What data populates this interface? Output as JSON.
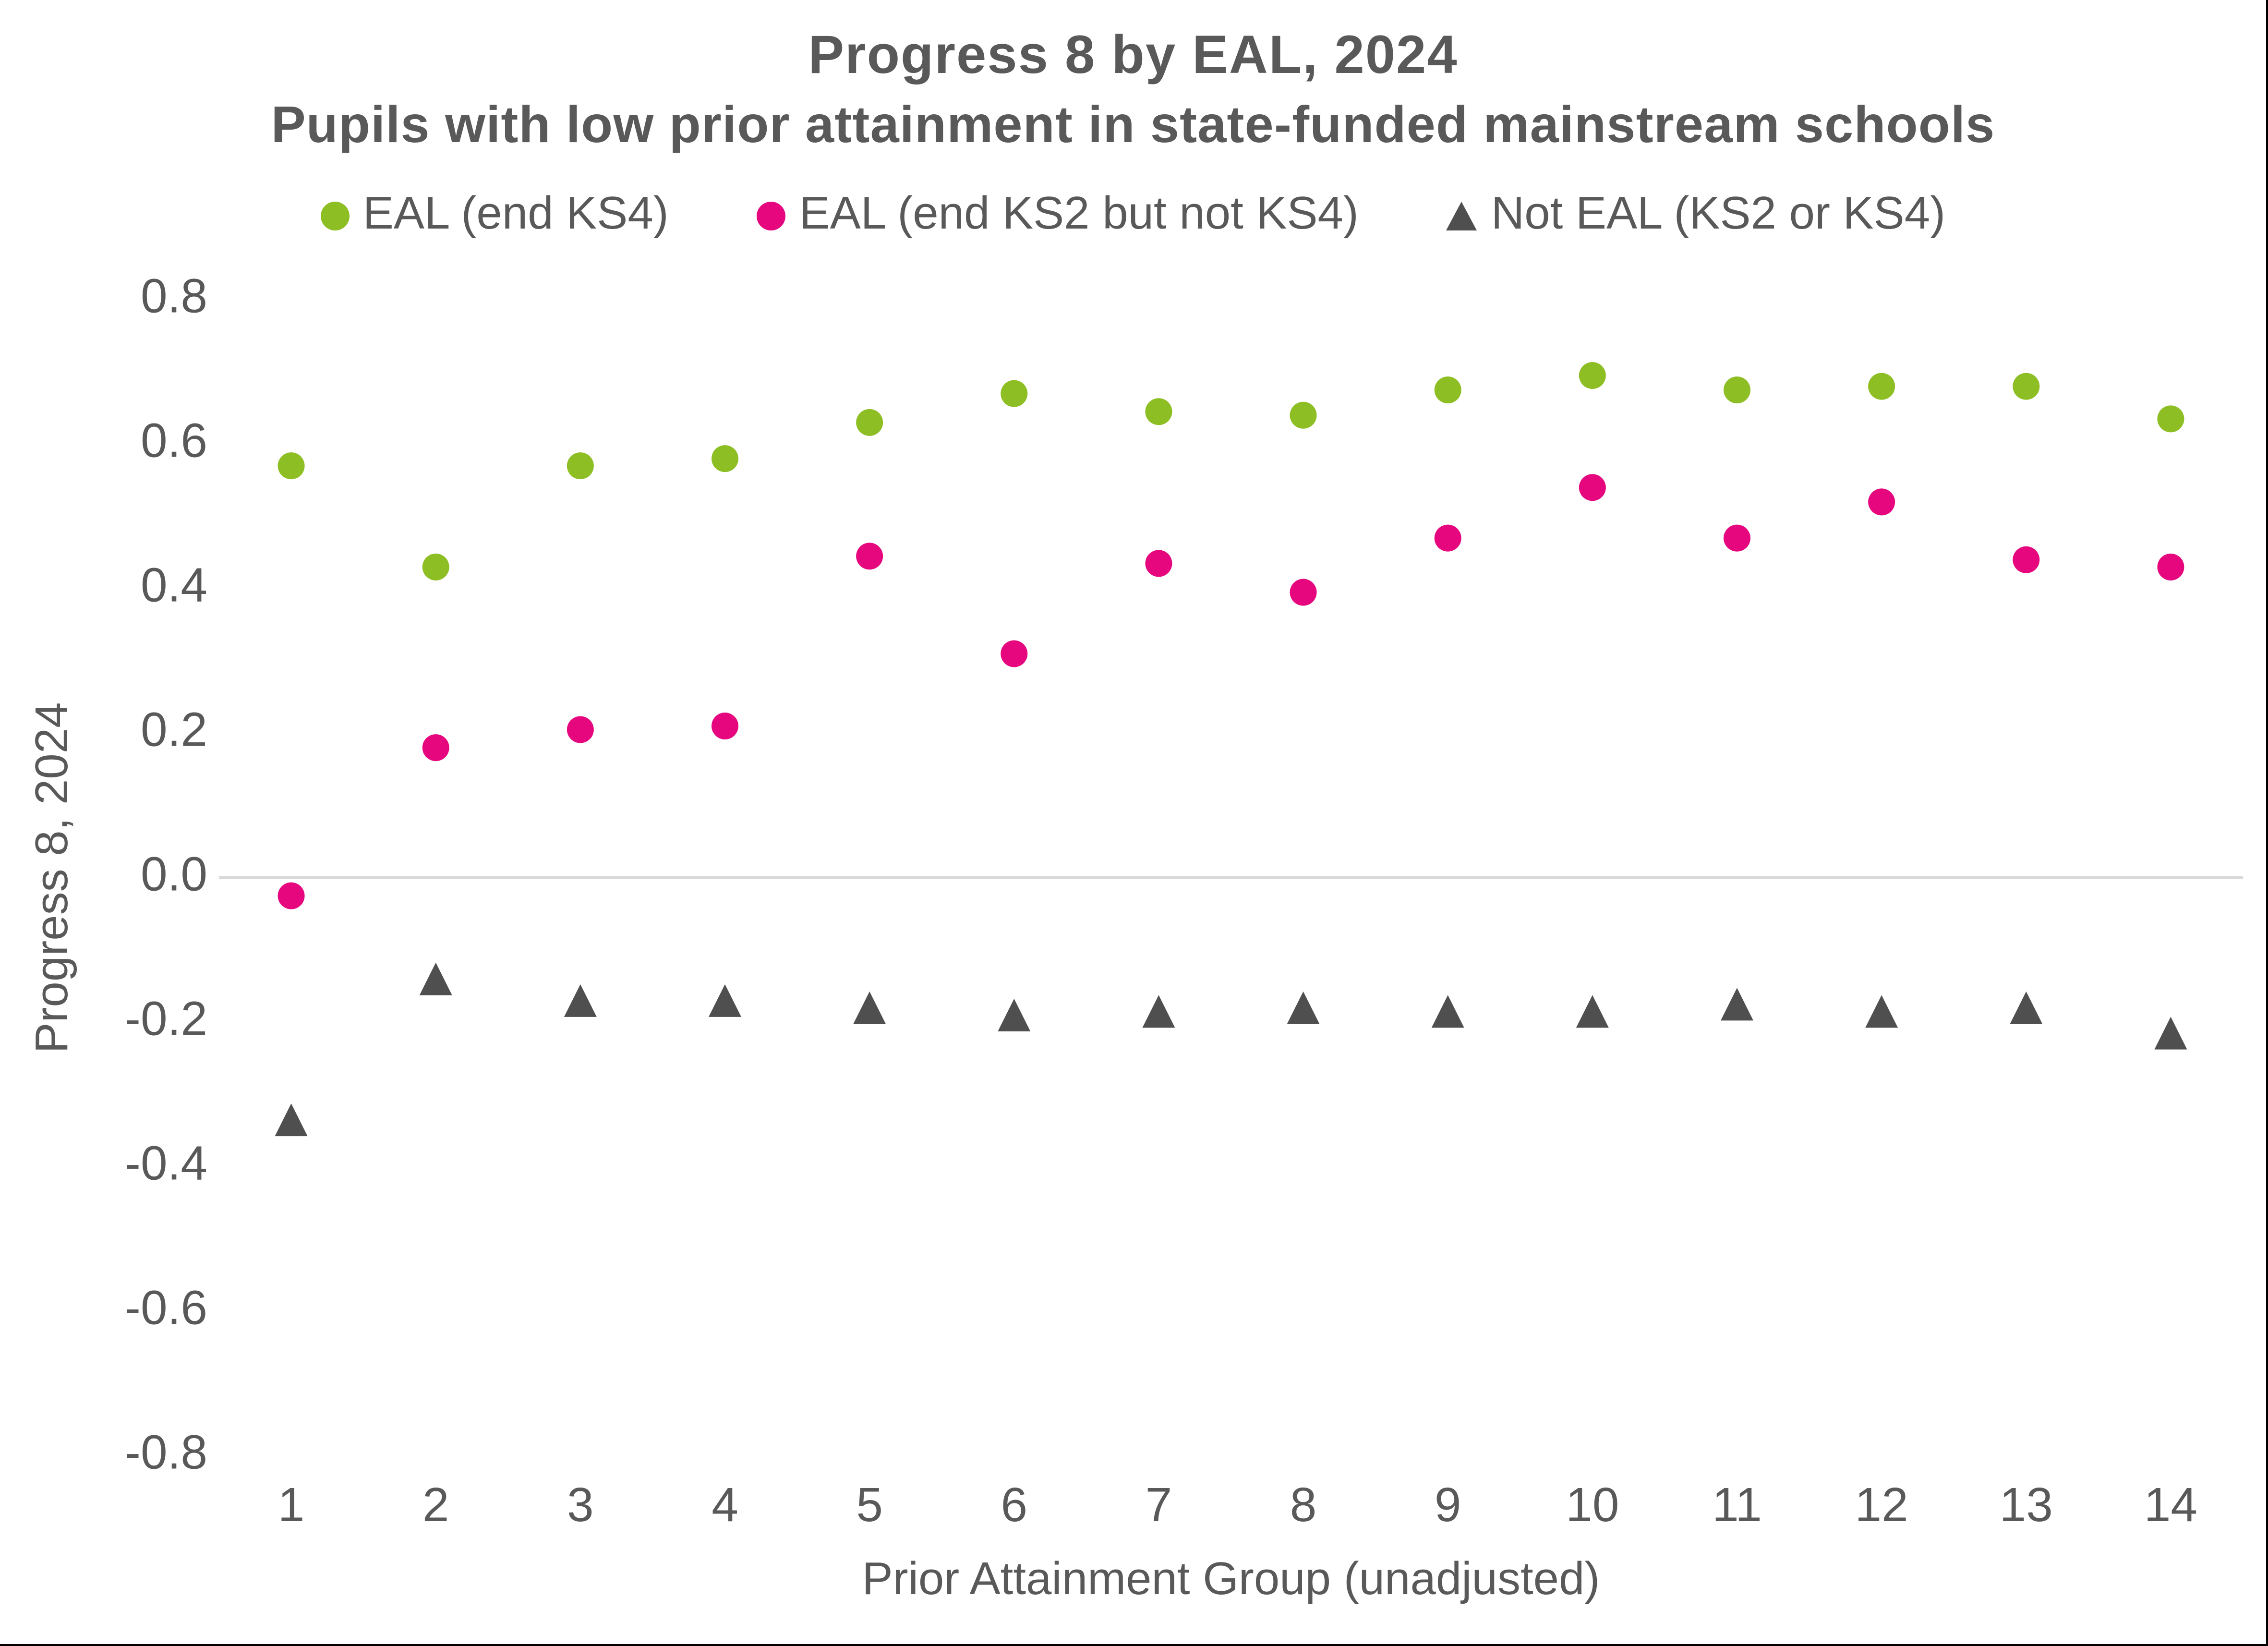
{
  "title": "Progress 8 by EAL, 2024",
  "subtitle": "Pupils with low prior attainment in state-funded mainstream schools",
  "colors": {
    "green": "#8DBE23",
    "pink": "#E6077E",
    "dark_grey": "#4F4F4F",
    "text": "#595959",
    "gridline": "#D9D9D9",
    "background": "#FFFFFF"
  },
  "chart_data": {
    "type": "scatter",
    "title": "Progress 8 by EAL, 2024",
    "subtitle": "Pupils with low prior attainment in state-funded mainstream schools",
    "xlabel": "Prior Attainment Group (unadjusted)",
    "ylabel": "Progress 8, 2024",
    "categories": [
      1,
      2,
      3,
      4,
      5,
      6,
      7,
      8,
      9,
      10,
      11,
      12,
      13,
      14
    ],
    "ylim": [
      -0.8,
      0.8
    ],
    "ytick_step": 0.2,
    "ytick_labels": [
      "0.8",
      "0.6",
      "0.4",
      "0.2",
      "0.0",
      "-0.2",
      "-0.4",
      "-0.6",
      "-0.8"
    ],
    "grid": "zero-line-only",
    "legend_position": "top-center",
    "series": [
      {
        "name": "EAL (end KS4)",
        "marker": "circle",
        "color": "#8DBE23",
        "values": [
          0.57,
          0.43,
          0.57,
          0.58,
          0.63,
          0.67,
          0.645,
          0.64,
          0.675,
          0.695,
          0.675,
          0.68,
          0.68,
          0.635
        ]
      },
      {
        "name": "EAL (end KS2 but not KS4)",
        "marker": "circle",
        "color": "#E6077E",
        "values": [
          -0.025,
          0.18,
          0.205,
          0.21,
          0.445,
          0.31,
          0.435,
          0.395,
          0.47,
          0.54,
          0.47,
          0.52,
          0.44,
          0.43
        ]
      },
      {
        "name": "Not EAL (KS2 or KS4)",
        "marker": "triangle",
        "color": "#4F4F4F",
        "values": [
          -0.335,
          -0.14,
          -0.17,
          -0.17,
          -0.18,
          -0.19,
          -0.185,
          -0.18,
          -0.185,
          -0.185,
          -0.175,
          -0.185,
          -0.18,
          -0.215
        ]
      }
    ]
  }
}
